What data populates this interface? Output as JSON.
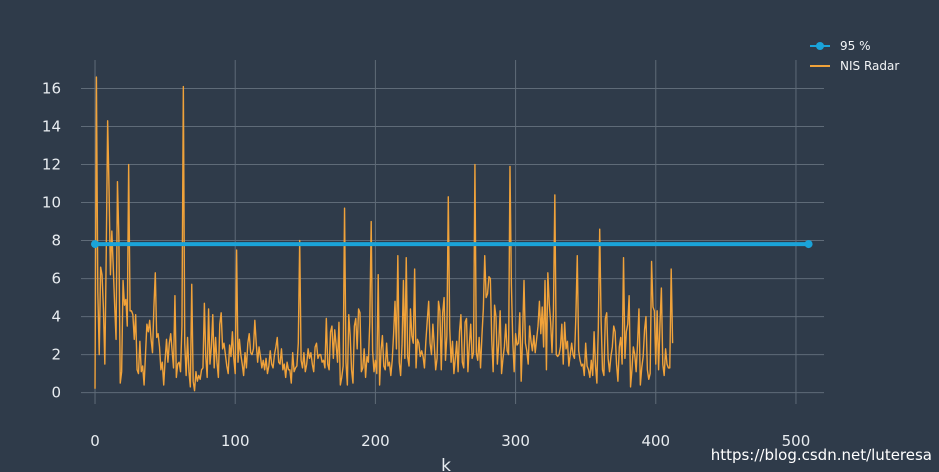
{
  "watermark": "https://blog.csdn.net/luteresa",
  "chart_data": {
    "type": "line",
    "xlabel": "k",
    "ylabel": "",
    "xlim": [
      -10,
      520
    ],
    "ylim": [
      -0.6,
      17.5
    ],
    "xticks": [
      0,
      100,
      200,
      300,
      400,
      500
    ],
    "yticks": [
      0,
      2,
      4,
      6,
      8,
      10,
      12,
      14,
      16
    ],
    "grid": true,
    "legend_position": "top-right",
    "colors": {
      "background": "#2f3b4a",
      "grid": "#5f6b78",
      "threshold": "#1aa3d9",
      "nis": "#f0a23a"
    },
    "series": [
      {
        "name": "95 %",
        "mode": "lines+markers",
        "x": [
          0,
          509
        ],
        "y": [
          7.815,
          7.815
        ]
      },
      {
        "name": "NIS Radar",
        "mode": "lines",
        "x_start": 0,
        "x_step": 1,
        "y": [
          0.2,
          16.6,
          5.3,
          2.0,
          6.6,
          6.2,
          4.4,
          1.5,
          7.3,
          14.3,
          10.7,
          6.2,
          8.5,
          6.6,
          4.6,
          2.8,
          11.1,
          8.2,
          0.5,
          1.1,
          5.9,
          4.6,
          4.9,
          3.5,
          12.0,
          4.3,
          4.3,
          4.1,
          2.8,
          4.1,
          1.2,
          1.0,
          2.7,
          1.1,
          1.4,
          0.4,
          2.0,
          3.6,
          3.2,
          3.8,
          2.8,
          2.1,
          4.5,
          6.3,
          2.9,
          3.1,
          2.4,
          1.2,
          1.6,
          0.4,
          1.7,
          2.8,
          1.6,
          2.6,
          3.1,
          2.2,
          1.3,
          5.1,
          0.8,
          1.5,
          1.6,
          1.1,
          3.5,
          16.1,
          2.6,
          0.9,
          2.9,
          1.1,
          0.3,
          5.7,
          0.6,
          0.1,
          1.1,
          0.6,
          0.9,
          0.7,
          1.2,
          1.3,
          4.7,
          1.9,
          0.8,
          4.4,
          1.5,
          2.4,
          4.1,
          1.3,
          2.9,
          1.6,
          0.8,
          3.6,
          4.2,
          2.3,
          2.6,
          2.0,
          1.4,
          1.0,
          2.5,
          1.9,
          3.2,
          1.8,
          1.0,
          7.5,
          1.6,
          2.8,
          2.0,
          1.5,
          0.9,
          2.1,
          1.3,
          2.6,
          3.1,
          2.1,
          2.0,
          2.3,
          3.8,
          2.6,
          1.6,
          2.4,
          1.9,
          1.3,
          1.7,
          1.2,
          1.8,
          1.0,
          1.4,
          2.2,
          1.5,
          1.3,
          2.0,
          2.4,
          2.9,
          1.6,
          1.5,
          2.3,
          1.2,
          1.5,
          0.8,
          1.6,
          1.2,
          1.2,
          0.5,
          2.1,
          1.1,
          1.3,
          1.4,
          2.6,
          8.0,
          1.7,
          1.3,
          2.1,
          1.1,
          1.5,
          2.3,
          1.8,
          2.1,
          1.5,
          1.1,
          2.4,
          2.6,
          1.8,
          2.0,
          2.0,
          1.6,
          1.7,
          1.3,
          3.9,
          1.5,
          1.2,
          3.2,
          3.5,
          1.8,
          3.3,
          2.5,
          1.6,
          3.7,
          0.4,
          0.8,
          1.4,
          9.7,
          1.6,
          0.4,
          4.1,
          3.0,
          1.2,
          0.5,
          3.5,
          3.9,
          2.3,
          4.4,
          4.2,
          1.1,
          1.3,
          2.3,
          0.8,
          1.9,
          1.6,
          3.7,
          9.0,
          2.2,
          1.1,
          1.7,
          1.0,
          6.2,
          0.4,
          2.2,
          3.0,
          1.4,
          1.2,
          2.6,
          1.4,
          1.6,
          0.9,
          1.7,
          3.1,
          4.8,
          2.3,
          7.2,
          1.6,
          0.9,
          2.5,
          5.9,
          1.8,
          7.1,
          1.9,
          1.4,
          4.4,
          3.0,
          2.6,
          6.5,
          1.3,
          2.8,
          2.6,
          1.9,
          2.2,
          1.9,
          1.3,
          2.7,
          3.8,
          4.8,
          2.6,
          2.0,
          3.6,
          2.5,
          1.2,
          1.8,
          4.8,
          4.3,
          1.2,
          4.2,
          5.0,
          1.7,
          3.0,
          10.3,
          3.4,
          1.6,
          2.7,
          1.0,
          1.8,
          2.7,
          1.1,
          3.2,
          4.1,
          1.6,
          1.3,
          3.7,
          3.9,
          1.1,
          2.5,
          3.6,
          1.8,
          2.1,
          12.0,
          2.1,
          1.7,
          2.9,
          1.3,
          3.0,
          4.4,
          7.2,
          5.0,
          5.2,
          6.1,
          6.0,
          2.8,
          1.1,
          4.6,
          4.0,
          1.5,
          2.6,
          4.3,
          1.0,
          1.8,
          2.4,
          3.6,
          2.2,
          2.0,
          11.9,
          5.7,
          2.7,
          1.1,
          3.1,
          2.5,
          2.6,
          4.2,
          0.6,
          3.0,
          5.9,
          2.6,
          2.2,
          1.5,
          3.5,
          2.7,
          2.2,
          3.0,
          2.1,
          2.8,
          3.5,
          4.8,
          3.1,
          4.5,
          2.4,
          5.9,
          1.2,
          6.3,
          4.7,
          3.7,
          2.1,
          4.3,
          10.4,
          2.0,
          1.9,
          2.0,
          2.4,
          3.6,
          1.5,
          3.7,
          2.3,
          2.7,
          1.4,
          2.0,
          2.6,
          2.0,
          1.8,
          4.0,
          7.2,
          2.2,
          1.7,
          1.4,
          1.5,
          0.9,
          2.6,
          1.4,
          1.2,
          0.8,
          1.7,
          0.9,
          3.2,
          1.4,
          0.5,
          3.4,
          8.6,
          3.8,
          1.2,
          0.9,
          3.9,
          4.2,
          1.8,
          1.1,
          1.9,
          2.4,
          3.5,
          3.2,
          1.5,
          0.6,
          2.4,
          2.9,
          1.5,
          7.1,
          1.8,
          3.2,
          3.6,
          5.1,
          0.3,
          1.2,
          2.4,
          2.0,
          1.1,
          2.6,
          4.4,
          0.4,
          1.3,
          1.9,
          3.3,
          4.0,
          1.2,
          0.7,
          1.0,
          6.9,
          4.5,
          4.3,
          1.5,
          4.3,
          1.2,
          3.6,
          5.5,
          1.5,
          0.9,
          2.3,
          1.5,
          1.3,
          1.3,
          6.5,
          2.6
        ]
      }
    ]
  }
}
